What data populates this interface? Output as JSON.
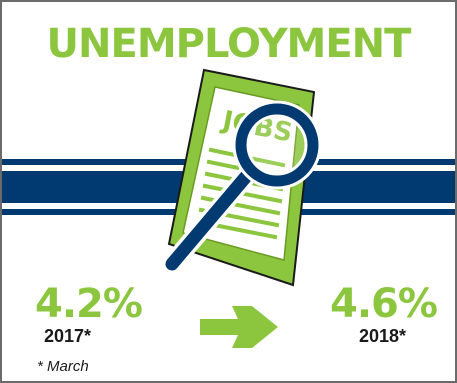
{
  "title": "UNEMPLOYMENT",
  "document": {
    "label": "JOBS"
  },
  "stats": [
    {
      "value": "4.2%",
      "year": "2017*"
    },
    {
      "value": "4.6%",
      "year": "2018*"
    }
  ],
  "footnote": "* March",
  "colors": {
    "accent_green": "#8cc63f",
    "navy": "#003a70",
    "text": "#1a1a1a",
    "border": "#6b6b6b"
  },
  "icons": {
    "document": "jobs-document-icon",
    "magnifier": "magnifying-glass-icon",
    "trend": "arrow-right-icon"
  }
}
